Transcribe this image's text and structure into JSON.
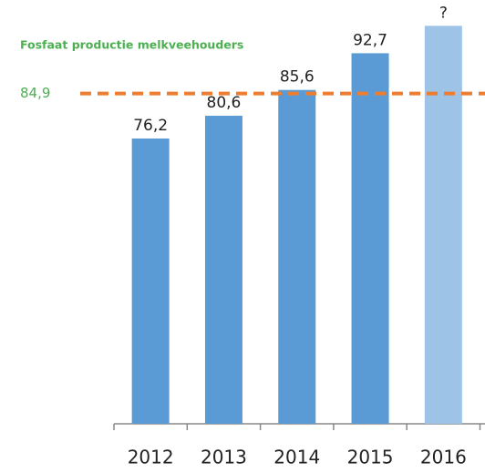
{
  "chart_data": {
    "type": "bar",
    "categories": [
      "2012",
      "2013",
      "2014",
      "2015",
      "2016"
    ],
    "values": [
      76.2,
      80.6,
      85.6,
      92.7,
      98
    ],
    "value_labels": [
      "76,2",
      "80,6",
      "85,6",
      "92,7",
      "?"
    ],
    "colors": [
      "#5b9bd5",
      "#5b9bd5",
      "#5b9bd5",
      "#5b9bd5",
      "#9dc3e6"
    ],
    "ylim": [
      21,
      103
    ],
    "reference_line": {
      "value": 84.9,
      "label": "84,9",
      "name": "Fosfaat productie melkveehouders",
      "color": "#ed7d31",
      "text_color": "#4caf50"
    }
  }
}
